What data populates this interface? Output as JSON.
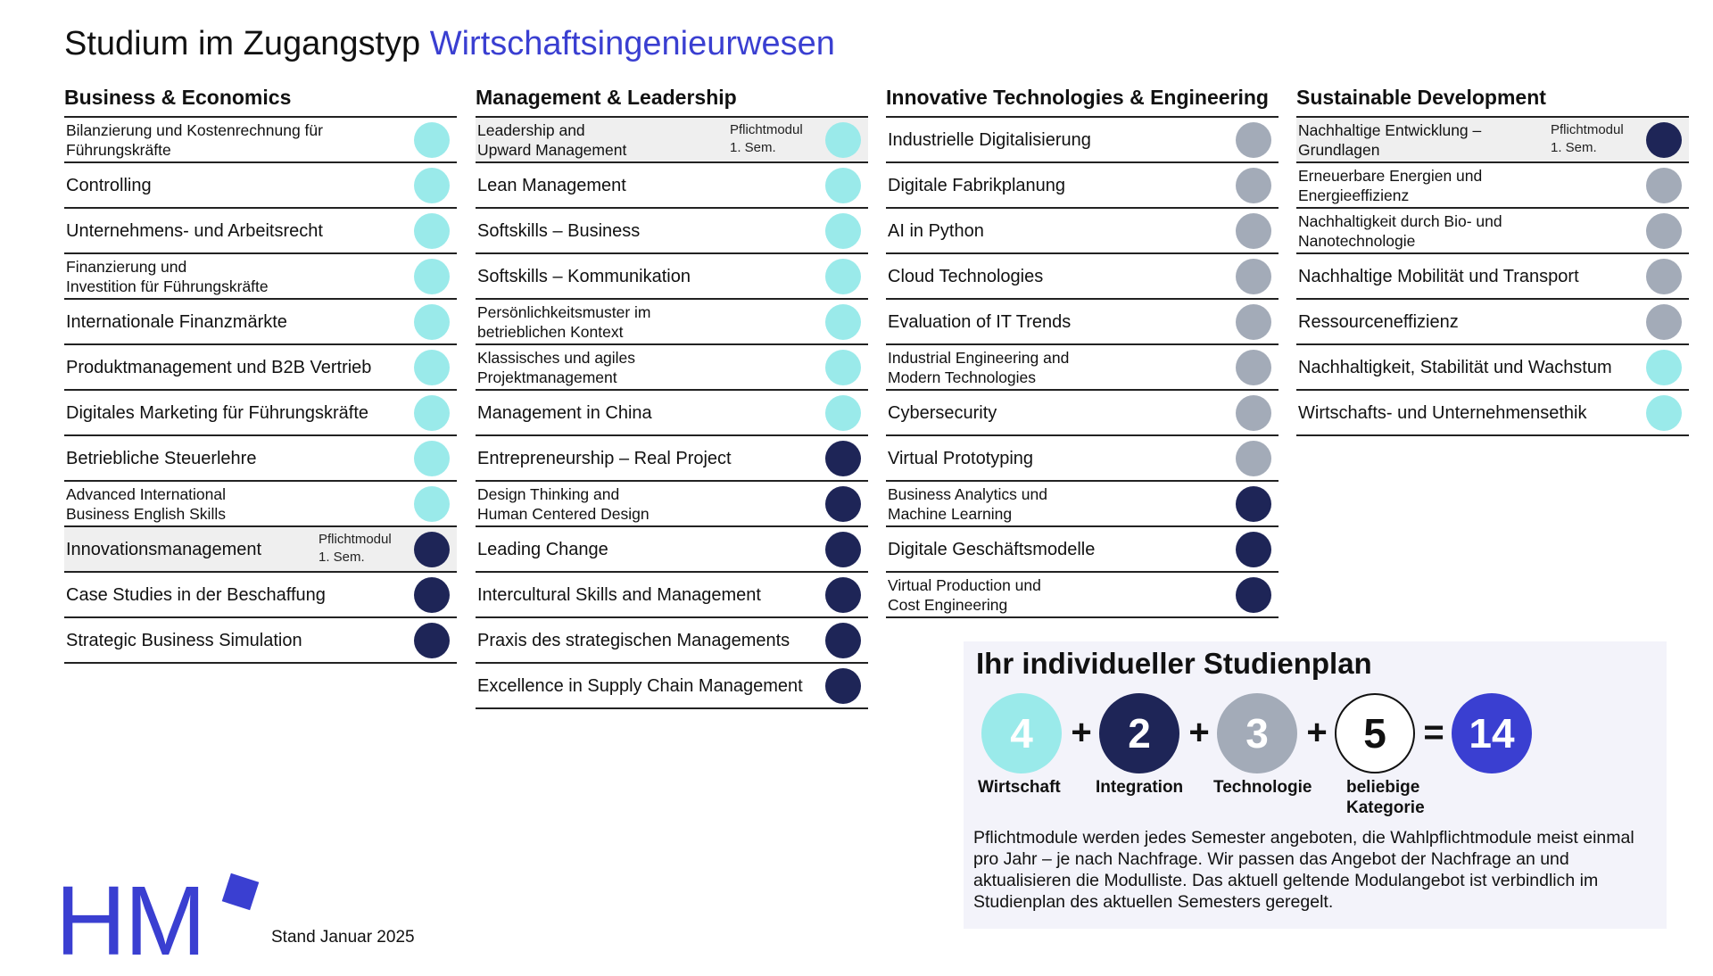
{
  "title": {
    "prefix": "Studium im Zugangstyp",
    "highlight": "Wirtschaftsingenieurwesen"
  },
  "colors": {
    "accent": "#3a3fd1",
    "wirtschaft": "#9aeaea",
    "integration": "#1e2557",
    "technologie": "#a3abb8",
    "pflicht_background": "#efefef"
  },
  "columns": [
    {
      "heading": "Business & Economics",
      "modules": [
        {
          "name": "Bilanzierung und Kostenrechnung für\nFührungskräfte",
          "category": "wirtschaft"
        },
        {
          "name": "Controlling",
          "category": "wirtschaft"
        },
        {
          "name": "Unternehmens- und Arbeitsrecht",
          "category": "wirtschaft"
        },
        {
          "name": "Finanzierung und\nInvestition für Führungskräfte",
          "category": "wirtschaft"
        },
        {
          "name": "Internationale Finanzmärkte",
          "category": "wirtschaft"
        },
        {
          "name": "Produktmanagement und B2B Vertrieb",
          "category": "wirtschaft"
        },
        {
          "name": "Digitales Marketing für Führungskräfte",
          "category": "wirtschaft"
        },
        {
          "name": "Betriebliche Steuerlehre",
          "category": "wirtschaft"
        },
        {
          "name": "Advanced International\nBusiness English Skills",
          "category": "wirtschaft"
        },
        {
          "name": "Innovationsmanagement",
          "category": "integration",
          "note": "Pflichtmodul\n1. Sem."
        },
        {
          "name": "Case Studies in der Beschaffung",
          "category": "integration"
        },
        {
          "name": "Strategic Business Simulation",
          "category": "integration"
        }
      ]
    },
    {
      "heading": "Management & Leadership",
      "modules": [
        {
          "name": "Leadership and\nUpward Management",
          "category": "wirtschaft",
          "note": "Pflichtmodul\n1. Sem."
        },
        {
          "name": "Lean Management",
          "category": "wirtschaft"
        },
        {
          "name": "Softskills – Business",
          "category": "wirtschaft"
        },
        {
          "name": "Softskills – Kommunikation",
          "category": "wirtschaft"
        },
        {
          "name": "Persönlichkeitsmuster im\nbetrieblichen Kontext",
          "category": "wirtschaft"
        },
        {
          "name": "Klassisches und agiles\nProjektmanagement",
          "category": "wirtschaft"
        },
        {
          "name": "Management in China",
          "category": "wirtschaft"
        },
        {
          "name": "Entrepreneurship – Real Project",
          "category": "integration"
        },
        {
          "name": "Design Thinking and\nHuman Centered Design",
          "category": "integration"
        },
        {
          "name": "Leading Change",
          "category": "integration"
        },
        {
          "name": "Intercultural Skills and Management",
          "category": "integration"
        },
        {
          "name": "Praxis des strategischen Managements",
          "category": "integration"
        },
        {
          "name": "Excellence in Supply Chain Management",
          "category": "integration"
        }
      ]
    },
    {
      "heading": "Innovative Technologies & Engineering",
      "modules": [
        {
          "name": "Industrielle Digitalisierung",
          "category": "technologie"
        },
        {
          "name": "Digitale Fabrikplanung",
          "category": "technologie"
        },
        {
          "name": "AI in Python",
          "category": "technologie"
        },
        {
          "name": "Cloud Technologies",
          "category": "technologie"
        },
        {
          "name": "Evaluation of IT Trends",
          "category": "technologie"
        },
        {
          "name": "Industrial Engineering and\nModern Technologies",
          "category": "technologie"
        },
        {
          "name": "Cybersecurity",
          "category": "technologie"
        },
        {
          "name": "Virtual Prototyping",
          "category": "technologie"
        },
        {
          "name": "Business Analytics und\nMachine Learning",
          "category": "integration"
        },
        {
          "name": "Digitale Geschäftsmodelle",
          "category": "integration"
        },
        {
          "name": "Virtual Production und\nCost Engineering",
          "category": "integration"
        }
      ]
    },
    {
      "heading": "Sustainable Development",
      "modules": [
        {
          "name": "Nachhaltige Entwicklung –\nGrundlagen",
          "category": "integration",
          "note": "Pflichtmodul\n1. Sem."
        },
        {
          "name": "Erneuerbare Energien und\nEnergieeffizienz",
          "category": "technologie"
        },
        {
          "name": "Nachhaltigkeit durch Bio- und\nNanotechnologie",
          "category": "technologie"
        },
        {
          "name": "Nachhaltige Mobilität und Transport",
          "category": "technologie"
        },
        {
          "name": "Ressourceneffizienz",
          "category": "technologie"
        },
        {
          "name": "Nachhaltigkeit, Stabilität und Wachstum",
          "category": "wirtschaft"
        },
        {
          "name": "Wirtschafts- und Unternehmensethik",
          "category": "wirtschaft"
        }
      ]
    }
  ],
  "plan": {
    "title": "Ihr individueller Studienplan",
    "terms": [
      {
        "value": "4",
        "label": "Wirtschaft",
        "fill": "#9aeaea",
        "text_color": "#ffffff",
        "border": "none"
      },
      {
        "value": "2",
        "label": "Integration",
        "fill": "#1e2557",
        "text_color": "#ffffff",
        "border": "none"
      },
      {
        "value": "3",
        "label": "Technologie",
        "fill": "#a3abb8",
        "text_color": "#ffffff",
        "border": "none"
      },
      {
        "value": "5",
        "label": "beliebige\nKategorie",
        "fill": "#ffffff",
        "text_color": "#111111",
        "border": "#111111"
      }
    ],
    "operators": [
      "+",
      "+",
      "+",
      "="
    ],
    "total": {
      "value": "14",
      "fill": "#3a3fd1",
      "text_color": "#ffffff"
    },
    "note": "Pflichtmodule werden jedes Semester angeboten, die Wahlpflichtmodule meist einmal pro Jahr – je nach Nachfrage. Wir passen das Angebot der Nachfrage an und aktualisieren die Modulliste. Das aktuell geltende Modulangebot ist verbindlich im Studienplan des aktuellen Semesters geregelt."
  },
  "logo": {
    "letters": "HM"
  },
  "footer": {
    "stand": "Stand Januar 2025"
  }
}
